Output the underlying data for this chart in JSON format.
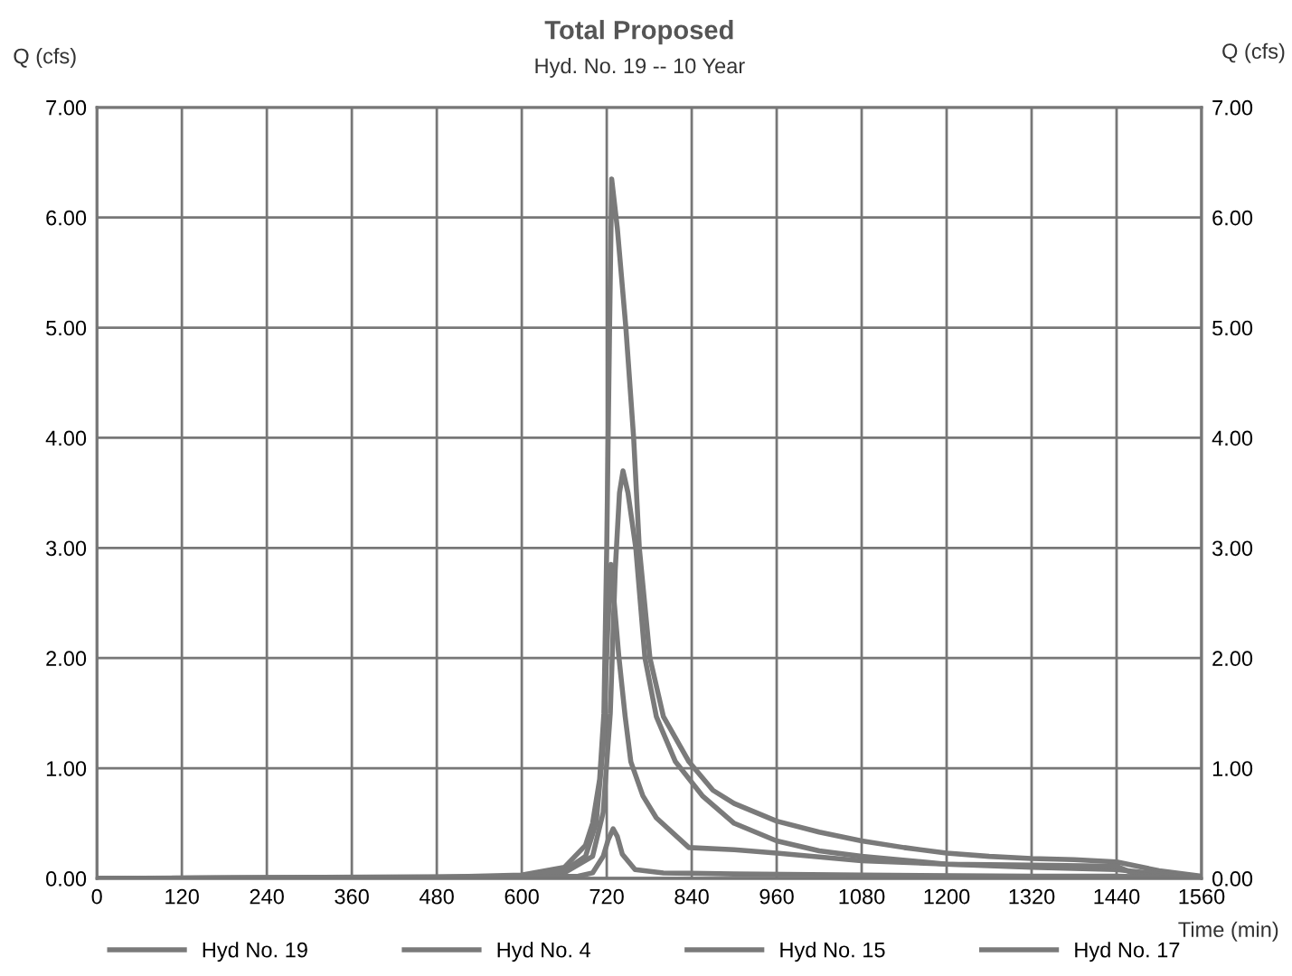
{
  "chart_data": {
    "type": "line",
    "title": "Total Proposed",
    "subtitle": "Hyd. No. 19 -- 10 Year",
    "xlabel": "Time (min)",
    "ylabel": "Q (cfs)",
    "y2label": "Q (cfs)",
    "xlim": [
      0,
      1560
    ],
    "xticks": [
      0,
      120,
      240,
      360,
      480,
      600,
      720,
      840,
      960,
      1080,
      1200,
      1320,
      1440,
      1560
    ],
    "ylim": [
      0,
      7
    ],
    "yticks": [
      {
        "value": 0,
        "label": "0.00"
      },
      {
        "value": 1,
        "label": "1.00"
      },
      {
        "value": 2,
        "label": "2.00"
      },
      {
        "value": 3,
        "label": "3.00"
      },
      {
        "value": 4,
        "label": "4.00"
      },
      {
        "value": 5,
        "label": "5.00"
      },
      {
        "value": 6,
        "label": "6.00"
      },
      {
        "value": 7,
        "label": "7.00"
      }
    ],
    "y2lim": [
      0,
      7
    ],
    "y2ticks": [
      {
        "value": 0,
        "label": "0.00"
      },
      {
        "value": 1,
        "label": "1.00"
      },
      {
        "value": 2,
        "label": "2.00"
      },
      {
        "value": 3,
        "label": "3.00"
      },
      {
        "value": 4,
        "label": "4.00"
      },
      {
        "value": 5,
        "label": "5.00"
      },
      {
        "value": 6,
        "label": "6.00"
      },
      {
        "value": 7,
        "label": "7.00"
      }
    ],
    "grid": true,
    "legend": "bottom",
    "line_style": "solid",
    "series": [
      {
        "name": "Hyd No. 19",
        "color": "#7a7a7a",
        "x": [
          0,
          480,
          600,
          660,
          690,
          700,
          710,
          716,
          720,
          724,
          727,
          735,
          747,
          758,
          766,
          781,
          800,
          836,
          870,
          900,
          960,
          1020,
          1080,
          1140,
          1200,
          1260,
          1320,
          1380,
          1440,
          1500,
          1560
        ],
        "values": [
          0,
          0.01,
          0.03,
          0.1,
          0.3,
          0.5,
          0.9,
          1.5,
          3.0,
          5.0,
          6.35,
          5.9,
          5.0,
          4.0,
          3.0,
          2.0,
          1.47,
          1.06,
          0.8,
          0.68,
          0.52,
          0.42,
          0.34,
          0.28,
          0.23,
          0.2,
          0.18,
          0.17,
          0.15,
          0.07,
          0.02
        ]
      },
      {
        "name": "Hyd No. 4",
        "color": "#7a7a7a",
        "x": [
          0,
          600,
          660,
          700,
          715,
          725,
          732,
          738,
          743,
          750,
          761,
          774,
          790,
          817,
          855,
          900,
          960,
          1020,
          1080,
          1200,
          1320,
          1440,
          1500,
          1560
        ],
        "values": [
          0,
          0.01,
          0.05,
          0.2,
          0.6,
          1.5,
          2.8,
          3.5,
          3.7,
          3.5,
          3.0,
          2.0,
          1.47,
          1.06,
          0.75,
          0.5,
          0.34,
          0.25,
          0.2,
          0.13,
          0.1,
          0.08,
          0.04,
          0.01
        ]
      },
      {
        "name": "Hyd No. 15",
        "color": "#7a7a7a",
        "x": [
          0,
          600,
          660,
          690,
          705,
          715,
          721,
          726,
          737,
          746,
          754,
          771,
          790,
          836,
          900,
          960,
          1080,
          1200,
          1320,
          1440,
          1470,
          1560
        ],
        "values": [
          0,
          0.02,
          0.07,
          0.2,
          0.5,
          1.2,
          2.2,
          2.85,
          2.02,
          1.47,
          1.06,
          0.75,
          0.55,
          0.28,
          0.26,
          0.23,
          0.16,
          0.13,
          0.12,
          0.11,
          0.03,
          0.01
        ]
      },
      {
        "name": "Hyd No. 17",
        "color": "#7a7a7a",
        "x": [
          0,
          600,
          680,
          700,
          715,
          722,
          729,
          735,
          742,
          760,
          800,
          900,
          1080,
          1320,
          1440,
          1560
        ],
        "values": [
          0,
          0.01,
          0.02,
          0.05,
          0.2,
          0.35,
          0.45,
          0.38,
          0.22,
          0.08,
          0.05,
          0.04,
          0.03,
          0.02,
          0.02,
          0.0
        ]
      }
    ]
  }
}
